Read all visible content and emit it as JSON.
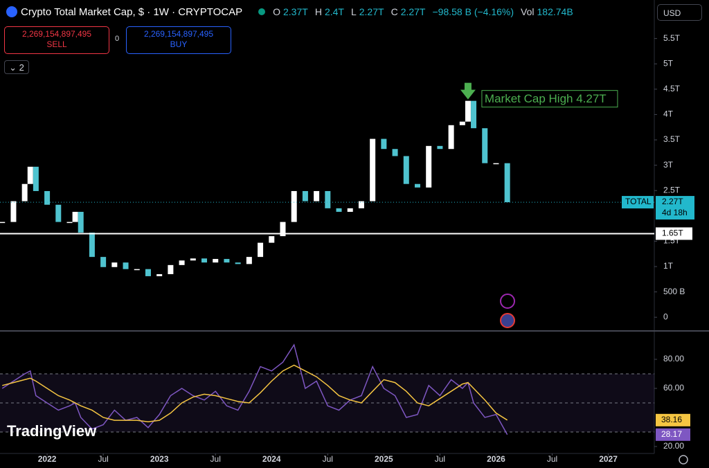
{
  "header": {
    "title": "Crypto Total Market Cap, $ · 1W · CRYPTOCAP",
    "ohlc": [
      {
        "key": "O",
        "value": "2.37T"
      },
      {
        "key": "H",
        "value": "2.4T"
      },
      {
        "key": "L",
        "value": "2.27T"
      },
      {
        "key": "C",
        "value": "2.27T"
      }
    ],
    "change": "−98.58 B (−4.16%)",
    "vol_key": "Vol",
    "vol": "182.74B",
    "currency": "USD"
  },
  "trade": {
    "sell_price": "2,269,154,897,495",
    "sell": "SELL",
    "spread": "0",
    "buy_price": "2,269,154,897,495",
    "buy": "BUY"
  },
  "indicators_count": "2",
  "logo": "TradingView",
  "chart_data": [
    {
      "type": "candlestick",
      "up_color": "#ffffff",
      "down_color": "#4fc3cf",
      "x": [
        2021.6,
        2021.7,
        2021.8,
        2021.85,
        2021.9,
        2022.0,
        2022.1,
        2022.2,
        2022.25,
        2022.3,
        2022.4,
        2022.5,
        2022.6,
        2022.7,
        2022.8,
        2022.9,
        2023.0,
        2023.1,
        2023.2,
        2023.3,
        2023.4,
        2023.5,
        2023.6,
        2023.7,
        2023.8,
        2023.9,
        2024.0,
        2024.1,
        2024.2,
        2024.3,
        2024.4,
        2024.5,
        2024.6,
        2024.7,
        2024.8,
        2024.9,
        2025.0,
        2025.1,
        2025.2,
        2025.3,
        2025.4,
        2025.5,
        2025.6,
        2025.7,
        2025.75,
        2025.8,
        2025.9,
        2026.0,
        2026.1
      ],
      "series": [
        {
          "name": "TOTAL",
          "values": [
            1.88,
            2.29,
            2.63,
            2.97,
            2.49,
            2.22,
            1.88,
            1.88,
            2.08,
            1.67,
            1.19,
            0.99,
            1.08,
            0.95,
            0.95,
            0.81,
            0.85,
            1.03,
            1.12,
            1.16,
            1.08,
            1.15,
            1.08,
            1.05,
            1.19,
            1.47,
            1.6,
            1.88,
            2.49,
            2.29,
            2.49,
            2.15,
            2.08,
            2.15,
            2.29,
            3.52,
            3.32,
            3.18,
            2.63,
            2.56,
            3.38,
            3.32,
            3.79,
            3.86,
            4.27,
            3.73,
            3.04,
            3.04,
            2.27
          ]
        }
      ],
      "last_price": {
        "value": 2.27,
        "label": "2.27T"
      },
      "countdown": "4d 18h",
      "last_color": "#22b8cc",
      "hline": {
        "value": 1.65,
        "label": "1.65T"
      },
      "annotation": {
        "text": "Market Cap High 4.27T",
        "x": 2025.75,
        "value": 4.27,
        "color": "#4caf50"
      },
      "xlim": [
        2021.58,
        2027.41
      ],
      "ylim": [
        -0.27,
        6.26
      ],
      "yticks": [
        0,
        {
          "value": 0.5,
          "label": "500 B"
        },
        {
          "value": 1,
          "label": "1T"
        },
        {
          "value": 1.5,
          "label": "1.5T"
        },
        {
          "value": 2.5,
          "label": "2.5T"
        },
        {
          "value": 3,
          "label": "3T"
        },
        {
          "value": 3.5,
          "label": "3.5T"
        },
        {
          "value": 4,
          "label": "4T"
        },
        {
          "value": 4.5,
          "label": "4.5T"
        },
        {
          "value": 5,
          "label": "5T"
        },
        {
          "value": 5.5,
          "label": "5.5T"
        }
      ],
      "xticks": [
        2022,
        {
          "value": 2022.5,
          "label": "Jul"
        },
        2023,
        {
          "value": 2023.5,
          "label": "Jul"
        },
        2024,
        {
          "value": 2024.5,
          "label": "Jul"
        },
        2025,
        {
          "value": 2025.5,
          "label": "Jul"
        },
        2026,
        {
          "value": 2026.5,
          "label": "Jul"
        },
        2027
      ]
    },
    {
      "type": "line",
      "x": [
        2021.6,
        2021.7,
        2021.8,
        2021.85,
        2021.9,
        2022.0,
        2022.1,
        2022.2,
        2022.25,
        2022.3,
        2022.4,
        2022.5,
        2022.6,
        2022.7,
        2022.8,
        2022.9,
        2023.0,
        2023.1,
        2023.2,
        2023.3,
        2023.4,
        2023.5,
        2023.6,
        2023.7,
        2023.8,
        2023.9,
        2024.0,
        2024.1,
        2024.2,
        2024.3,
        2024.4,
        2024.5,
        2024.6,
        2024.7,
        2024.8,
        2024.9,
        2025.0,
        2025.1,
        2025.2,
        2025.3,
        2025.4,
        2025.5,
        2025.6,
        2025.7,
        2025.75,
        2025.8,
        2025.9,
        2026.0,
        2026.1
      ],
      "series": [
        {
          "name": "RSI",
          "color": "#7e57c2",
          "values": [
            60,
            65,
            70,
            72,
            55,
            50,
            45,
            48,
            50,
            40,
            32,
            35,
            45,
            38,
            40,
            33,
            42,
            55,
            60,
            55,
            52,
            58,
            48,
            45,
            58,
            75,
            72,
            78,
            90,
            60,
            65,
            48,
            45,
            52,
            55,
            75,
            60,
            55,
            40,
            42,
            62,
            55,
            66,
            60,
            64,
            50,
            40,
            42,
            28.17
          ],
          "value_label": "28.17"
        },
        {
          "name": "MA",
          "color": "#f5c542",
          "values": [
            62,
            64,
            66,
            67,
            65,
            60,
            55,
            52,
            50,
            48,
            45,
            40,
            38,
            38,
            38,
            37,
            38,
            43,
            50,
            54,
            56,
            55,
            53,
            51,
            50,
            57,
            65,
            72,
            76,
            72,
            68,
            62,
            55,
            52,
            50,
            58,
            66,
            64,
            58,
            50,
            48,
            53,
            58,
            63,
            64,
            60,
            52,
            43,
            38.16
          ],
          "value_label": "38.16"
        }
      ],
      "levels": [
        70,
        50,
        30
      ],
      "xlim": [
        2021.58,
        2027.41
      ],
      "ylim": [
        15.2,
        98.6
      ],
      "yticks": [
        {
          "value": 20,
          "label": "20.00"
        },
        {
          "value": 60,
          "label": "60.00"
        },
        {
          "value": 80,
          "label": "80.00"
        }
      ]
    }
  ]
}
